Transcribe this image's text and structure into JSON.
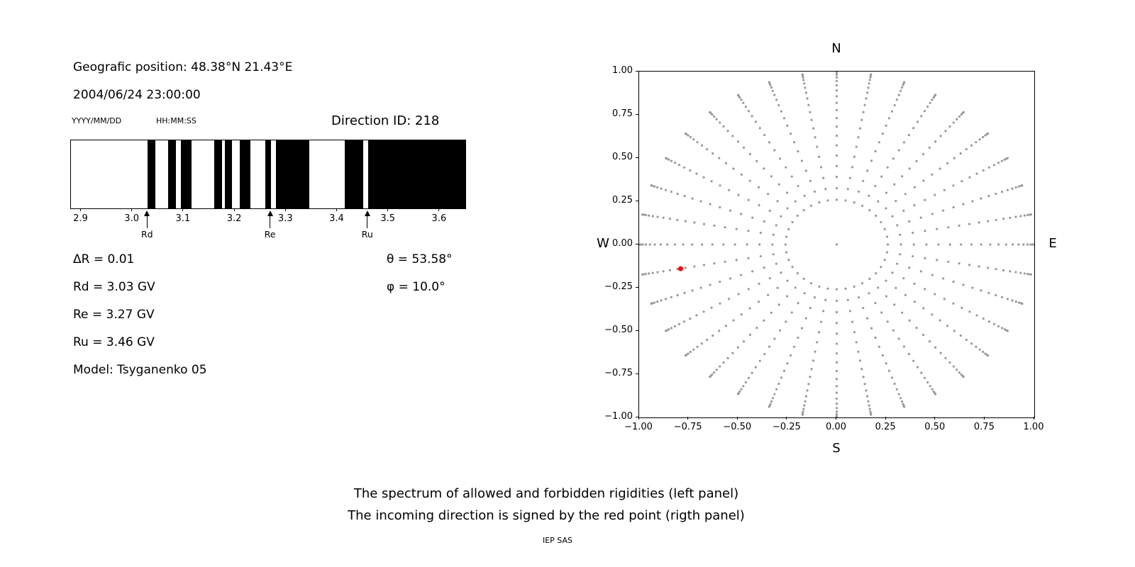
{
  "header": {
    "geographic_position": "Geografic position: 48.38°N 21.43°E",
    "datetime": "2004/06/24 23:00:00",
    "date_format_label": "YYYY/MM/DD",
    "time_format_label": "HH:MM:SS",
    "direction_id": "Direction ID: 218"
  },
  "parameters": {
    "delta_r": "ΔR = 0.01",
    "rd": "Rd = 3.03 GV",
    "re": "Re = 3.27 GV",
    "ru": "Ru = 3.46 GV",
    "model": "Model: Tsyganenko 05",
    "theta": "θ = 53.58°",
    "phi": "φ = 10.0°"
  },
  "caption": {
    "line1": "The spectrum of allowed and forbidden rigidities (left panel)",
    "line2": "The incoming direction is signed by the red point (rigth panel)",
    "credit": "IEP SAS"
  },
  "colors": {
    "bar": "#000000",
    "grid_dot": "#999999",
    "red_point": "#ff0000"
  },
  "chart_data": [
    {
      "type": "bar",
      "description": "Cutoff rigidity spectrum: black bands = allowed rigidities, white = forbidden",
      "xlim": [
        2.88,
        3.65
      ],
      "xticks": [
        2.9,
        3.0,
        3.1,
        3.2,
        3.3,
        3.4,
        3.5,
        3.6
      ],
      "allowed_intervals": [
        [
          3.03,
          3.045
        ],
        [
          3.07,
          3.085
        ],
        [
          3.095,
          3.115
        ],
        [
          3.16,
          3.175
        ],
        [
          3.18,
          3.195
        ],
        [
          3.21,
          3.23
        ],
        [
          3.26,
          3.27
        ],
        [
          3.28,
          3.345
        ],
        [
          3.415,
          3.45
        ],
        [
          3.46,
          3.65
        ]
      ],
      "markers": [
        {
          "label": "Rd",
          "value": 3.03
        },
        {
          "label": "Re",
          "value": 3.27
        },
        {
          "label": "Ru",
          "value": 3.46
        }
      ]
    },
    {
      "type": "scatter",
      "description": "Direction grid of gray points; red point marks incoming direction θ=53.58°, φ=10.0°",
      "xlim": [
        -1,
        1
      ],
      "ylim": [
        -1,
        1
      ],
      "xticks": [
        -1.0,
        -0.75,
        -0.5,
        -0.25,
        0.0,
        0.25,
        0.5,
        0.75,
        1.0
      ],
      "yticks": [
        -1.0,
        -0.75,
        -0.5,
        -0.25,
        0.0,
        0.25,
        0.5,
        0.75,
        1.0
      ],
      "axis_labels": {
        "top": "N",
        "bottom": "S",
        "left": "W",
        "right": "E"
      },
      "grid_points": {
        "azimuth_start_deg": 0,
        "azimuth_step_deg": 10,
        "azimuth_count": 36,
        "zenith_start_deg": 15,
        "zenith_end_deg": 87,
        "zenith_step_deg": 4,
        "radius_rule": "sin(zenith)",
        "center_point": true
      },
      "red_point": {
        "x": -0.79,
        "y": -0.14
      }
    }
  ]
}
